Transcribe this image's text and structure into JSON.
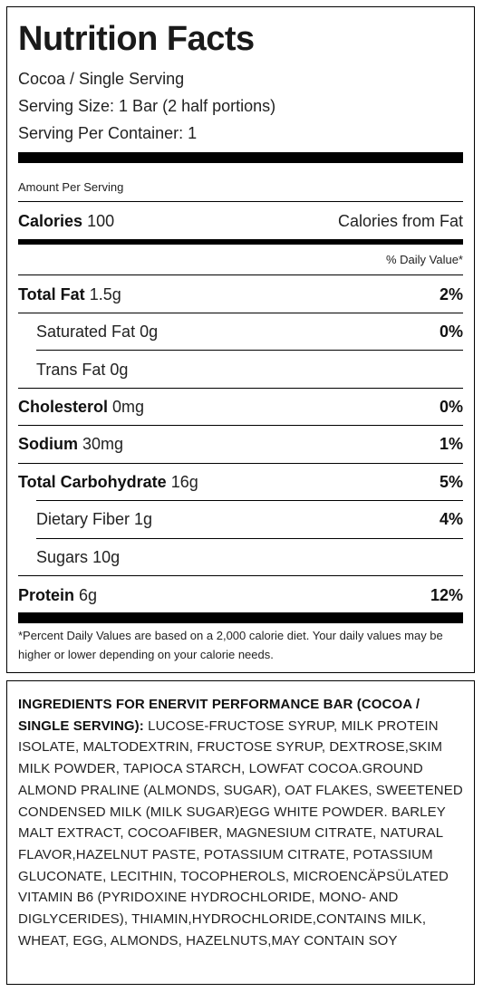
{
  "title": "Nutrition Facts",
  "product_line": "Cocoa / Single Serving",
  "serving_size": "Serving Size: 1 Bar (2 half portions)",
  "servings_per_container": "Serving Per Container: 1",
  "amount_per_serving": "Amount Per Serving",
  "calories": {
    "label": "Calories",
    "value": "100",
    "from_fat_label": "Calories from Fat"
  },
  "daily_value_header": "% Daily Value*",
  "nutrients": [
    {
      "label": "Total Fat",
      "amount": "1.5g",
      "dv": "2%"
    },
    {
      "label": "Saturated Fat",
      "amount": "0g",
      "dv": "0%"
    },
    {
      "label": "Trans Fat",
      "amount": "0g",
      "dv": ""
    },
    {
      "label": "Cholesterol",
      "amount": "0mg",
      "dv": "0%"
    },
    {
      "label": "Sodium",
      "amount": "30mg",
      "dv": "1%"
    },
    {
      "label": "Total Carbohydrate",
      "amount": "16g",
      "dv": "5%"
    },
    {
      "label": "Dietary Fiber",
      "amount": "1g",
      "dv": "4%"
    },
    {
      "label": "Sugars",
      "amount": "10g",
      "dv": ""
    },
    {
      "label": "Protein",
      "amount": "6g",
      "dv": "12%"
    }
  ],
  "footnote": "*Percent Daily Values are based on a 2,000 calorie diet. Your daily values may be higher or lower depending on your calorie needs.",
  "ingredients": {
    "heading": "Ingredients for Enervit Performance Bar (Cocoa / Single Serving):",
    "text": "Lucose-Fructose Syrup, Milk Protein Isolate, Maltodextrin, Fructose Syrup, Dextrose,Skim Milk Powder, Tapioca Starch, Lowfat Cocoa.Ground Almond Praline (Almonds, Sugar), Oat Flakes, Sweetened Condensed Milk (Milk Sugar)Egg White Powder. Barley Malt Extract, Cocoafiber, Magnesium Citrate, Natural Flavor,Hazelnut Paste, Potassium Citrate, Potassium Gluconate, Lecithin, Tocopherols, Microencäpsülated Vitamin B6 (Pyridoxine Hydrochloride, Mono- and Diglycerides), Thiamin,Hydrochloride,Contains Milk, Wheat, Egg, Almonds, Hazelnuts,May Contain Soy"
  }
}
